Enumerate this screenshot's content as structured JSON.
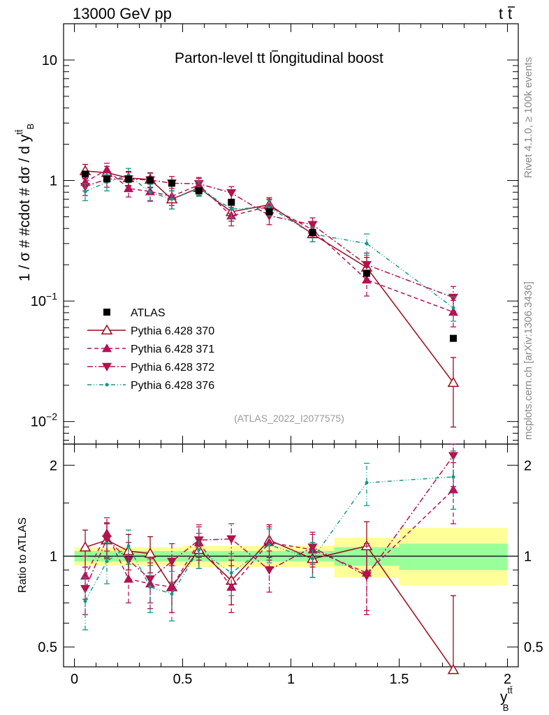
{
  "chart_data": {
    "type": "line",
    "header": {
      "energy": "13000 GeV pp",
      "process": "t",
      "process_bar": "t"
    },
    "title": {
      "prefix": "Parton-level ",
      "t": "t",
      "tbar": "t",
      "suffix": " longitudinal boost"
    },
    "analysis_id": "(ATLAS_2022_I2077575)",
    "ylabel": "1 / σ # #cdot # dσ / d y",
    "ylabel_sup": "tt̄",
    "ylabel_sub": "B",
    "xlabel": "y",
    "xlabel_sup": "tt̄",
    "xlabel_sub": "B",
    "ratio_ylabel": "Ratio to ATLAS",
    "side_text_top": "Rivet 4.1.0, ≥ 100k events",
    "side_text_bottom": "mcplots.cern.ch [arXiv:1306.3436]",
    "x_range": [
      -0.05,
      2.05
    ],
    "y_range": [
      0.0065,
      20
    ],
    "ratio_range": [
      0.43,
      2.35
    ],
    "x_ticks": [
      {
        "v": 0,
        "label": "0"
      },
      {
        "v": 0.5,
        "label": "0.5"
      },
      {
        "v": 1,
        "label": "1"
      },
      {
        "v": 1.5,
        "label": "1.5"
      },
      {
        "v": 2,
        "label": "2"
      }
    ],
    "y_ticks": [
      {
        "v": 0.01,
        "base": "10",
        "exp": "−2"
      },
      {
        "v": 0.1,
        "base": "10",
        "exp": "−1"
      },
      {
        "v": 1,
        "base": "1",
        "exp": ""
      },
      {
        "v": 10,
        "base": "10",
        "exp": ""
      }
    ],
    "ratio_ticks": [
      {
        "v": 0.5,
        "label": "0.5"
      },
      {
        "v": 1,
        "label": "1"
      },
      {
        "v": 2,
        "label": "2"
      }
    ],
    "bins": [
      [
        0.0,
        0.1
      ],
      [
        0.1,
        0.2
      ],
      [
        0.2,
        0.3
      ],
      [
        0.3,
        0.4
      ],
      [
        0.4,
        0.5
      ],
      [
        0.5,
        0.65
      ],
      [
        0.65,
        0.8
      ],
      [
        0.8,
        1.0
      ],
      [
        1.0,
        1.2
      ],
      [
        1.2,
        1.5
      ],
      [
        1.5,
        2.0
      ]
    ],
    "x": [
      0.05,
      0.15,
      0.25,
      0.35,
      0.45,
      0.575,
      0.725,
      0.9,
      1.1,
      1.35,
      1.75
    ],
    "reference": {
      "name": "ATLAS",
      "values": [
        1.13,
        1.03,
        1.03,
        1.01,
        0.95,
        0.82,
        0.66,
        0.55,
        0.37,
        0.17,
        0.049
      ],
      "band_inner": [
        [
          0.96,
          1.04
        ],
        [
          0.96,
          1.04
        ],
        [
          0.96,
          1.04
        ],
        [
          0.96,
          1.04
        ],
        [
          0.96,
          1.04
        ],
        [
          0.96,
          1.04
        ],
        [
          0.96,
          1.04
        ],
        [
          0.96,
          1.04
        ],
        [
          0.96,
          1.04
        ],
        [
          0.93,
          1.07
        ],
        [
          0.9,
          1.1
        ]
      ],
      "band_outer": [
        [
          0.93,
          1.07
        ],
        [
          0.93,
          1.07
        ],
        [
          0.93,
          1.07
        ],
        [
          0.93,
          1.07
        ],
        [
          0.93,
          1.07
        ],
        [
          0.92,
          1.08
        ],
        [
          0.92,
          1.08
        ],
        [
          0.92,
          1.08
        ],
        [
          0.92,
          1.08
        ],
        [
          0.85,
          1.15
        ],
        [
          0.8,
          1.24
        ]
      ]
    },
    "series": [
      {
        "name": "Pythia 6.428 370",
        "color": "#990a1a",
        "dash": "",
        "marker": "open-triangle-up",
        "values": [
          1.2,
          1.16,
          1.05,
          1.02,
          0.7,
          0.87,
          0.55,
          0.63,
          0.36,
          0.19,
          0.021
        ],
        "err_lo": [
          0.16,
          0.15,
          0.14,
          0.14,
          0.12,
          0.12,
          0.09,
          0.09,
          0.05,
          0.04,
          0.012
        ],
        "err_hi": [
          0.16,
          0.15,
          0.14,
          0.14,
          0.12,
          0.12,
          0.09,
          0.09,
          0.05,
          0.04,
          0.013
        ],
        "ratio": [
          1.07,
          1.13,
          1.04,
          1.02,
          0.79,
          1.05,
          0.83,
          1.13,
          0.98,
          1.08,
          0.42
        ],
        "ratio_err": [
          0.15,
          0.15,
          0.14,
          0.14,
          0.14,
          0.14,
          0.14,
          0.14,
          0.13,
          0.22,
          0.32
        ]
      },
      {
        "name": "Pythia 6.428 371",
        "color": "#b3125a",
        "dash": "6,4",
        "marker": "triangle-up",
        "values": [
          0.97,
          1.23,
          0.86,
          0.81,
          0.74,
          0.92,
          0.51,
          0.61,
          0.39,
          0.15,
          0.081
        ],
        "err_lo": [
          0.15,
          0.16,
          0.13,
          0.13,
          0.12,
          0.12,
          0.09,
          0.09,
          0.05,
          0.04,
          0.02
        ],
        "err_hi": [
          0.15,
          0.16,
          0.13,
          0.13,
          0.12,
          0.12,
          0.09,
          0.09,
          0.05,
          0.04,
          0.02
        ],
        "ratio": [
          0.86,
          1.19,
          0.84,
          0.81,
          0.79,
          1.11,
          0.79,
          1.11,
          1.05,
          0.88,
          1.66
        ],
        "ratio_err": [
          0.14,
          0.15,
          0.14,
          0.14,
          0.14,
          0.14,
          0.14,
          0.14,
          0.13,
          0.22,
          0.38
        ]
      },
      {
        "name": "Pythia 6.428 372",
        "color": "#b3124a",
        "dash": "8,3,2,3",
        "marker": "triangle-down",
        "values": [
          0.89,
          1.03,
          1.03,
          1.01,
          0.95,
          0.94,
          0.79,
          0.51,
          0.43,
          0.2,
          0.107
        ],
        "err_lo": [
          0.14,
          0.15,
          0.14,
          0.14,
          0.13,
          0.12,
          0.1,
          0.08,
          0.06,
          0.05,
          0.025
        ],
        "err_hi": [
          0.14,
          0.15,
          0.14,
          0.14,
          0.13,
          0.12,
          0.1,
          0.08,
          0.06,
          0.05,
          0.025
        ],
        "ratio": [
          0.78,
          1.14,
          0.97,
          0.84,
          0.96,
          1.13,
          1.14,
          0.9,
          1.07,
          0.86,
          2.15
        ],
        "ratio_err": [
          0.14,
          0.15,
          0.14,
          0.14,
          0.14,
          0.14,
          0.14,
          0.14,
          0.13,
          0.22,
          0.45
        ]
      },
      {
        "name": "Pythia 6.428 376",
        "color": "#139986",
        "dash": "6,3,1,3,1,3",
        "marker": "dot",
        "values": [
          0.81,
          0.97,
          1.11,
          0.8,
          0.7,
          0.86,
          0.58,
          0.6,
          0.36,
          0.3,
          0.088
        ],
        "err_lo": [
          0.13,
          0.15,
          0.15,
          0.13,
          0.12,
          0.12,
          0.09,
          0.09,
          0.05,
          0.06,
          0.02
        ],
        "err_hi": [
          0.13,
          0.15,
          0.15,
          0.13,
          0.12,
          0.12,
          0.09,
          0.09,
          0.05,
          0.06,
          0.02
        ],
        "ratio": [
          0.71,
          0.96,
          1.08,
          0.79,
          0.75,
          1.05,
          0.88,
          1.09,
          0.98,
          1.75,
          1.83
        ],
        "ratio_err": [
          0.14,
          0.15,
          0.14,
          0.14,
          0.14,
          0.14,
          0.14,
          0.14,
          0.13,
          0.28,
          0.4
        ]
      }
    ]
  }
}
